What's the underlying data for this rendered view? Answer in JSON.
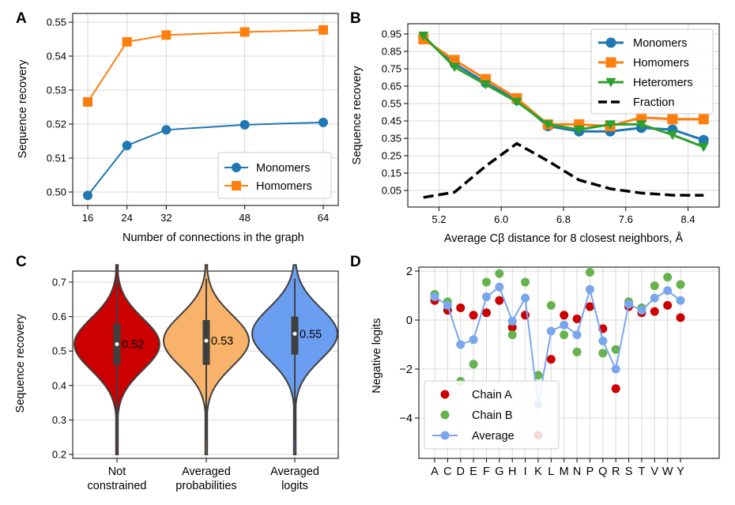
{
  "colors": {
    "blue": "#1f77b4",
    "orange": "#ff7f0e",
    "green": "#2ca02c",
    "black": "#000000",
    "violin_red": "#cc0000",
    "violin_orange": "#f9b26a",
    "violin_blue": "#6a9ef0",
    "chainA": "#cc0000",
    "chainB": "#66b34d",
    "average": "#7aa6ee"
  },
  "panels": {
    "A": {
      "label": "A",
      "xlabel": "Number of connections in the graph",
      "ylabel": "Sequence recovery"
    },
    "B": {
      "label": "B",
      "xlabel": "Average Cβ distance for 8 closest neighbors, Å",
      "ylabel": "Sequence recovery"
    },
    "C": {
      "label": "C",
      "xlabel": "",
      "ylabel": "Sequence recovery"
    },
    "D": {
      "label": "D",
      "xlabel": "",
      "ylabel": "Negative logits"
    }
  },
  "chart_data": [
    {
      "panel": "A",
      "type": "line",
      "x": [
        16,
        24,
        32,
        48,
        64
      ],
      "xticks": [
        "16",
        "24",
        "32",
        "48",
        "64"
      ],
      "yticks": [
        "0.50",
        "0.51",
        "0.52",
        "0.53",
        "0.54",
        "0.55"
      ],
      "ylim": [
        0.498,
        0.55
      ],
      "grid": true,
      "legend_position": "lower-right",
      "series": [
        {
          "name": "Monomers",
          "color": "blue",
          "marker": "circle",
          "values": [
            0.499,
            0.5137,
            0.5183,
            0.5198,
            0.5205
          ]
        },
        {
          "name": "Homomers",
          "color": "orange",
          "marker": "square",
          "values": [
            0.5265,
            0.5442,
            0.5462,
            0.5471,
            0.5477
          ]
        }
      ]
    },
    {
      "panel": "B",
      "type": "line",
      "x": [
        5.0,
        5.4,
        5.8,
        6.2,
        6.6,
        7.0,
        7.4,
        7.8,
        8.2,
        8.6
      ],
      "xticks": [
        "5.2",
        "6.0",
        "6.8",
        "7.6",
        "8.4"
      ],
      "xtick_values": [
        5.2,
        6.0,
        6.8,
        7.6,
        8.4
      ],
      "xlim": [
        4.8,
        8.8
      ],
      "yticks": [
        "0.05",
        "0.15",
        "0.25",
        "0.35",
        "0.45",
        "0.55",
        "0.65",
        "0.75",
        "0.85",
        "0.95"
      ],
      "ylim": [
        -0.03,
        0.98
      ],
      "grid": true,
      "legend_position": "top-right",
      "series": [
        {
          "name": "Monomers",
          "color": "blue",
          "marker": "circle",
          "dash": false,
          "values": [
            0.93,
            0.78,
            0.67,
            0.57,
            0.42,
            0.39,
            0.39,
            0.41,
            0.4,
            0.34
          ]
        },
        {
          "name": "Homomers",
          "color": "orange",
          "marker": "square",
          "dash": false,
          "values": [
            0.92,
            0.8,
            0.69,
            0.58,
            0.43,
            0.43,
            0.42,
            0.47,
            0.46,
            0.46
          ]
        },
        {
          "name": "Heteromers",
          "color": "green",
          "marker": "triangle-down",
          "dash": false,
          "values": [
            0.94,
            0.76,
            0.66,
            0.56,
            0.43,
            0.4,
            0.43,
            0.43,
            0.37,
            0.3
          ]
        },
        {
          "name": "Fraction",
          "color": "black",
          "marker": "none",
          "dash": true,
          "values": [
            0.01,
            0.04,
            0.19,
            0.32,
            0.22,
            0.11,
            0.06,
            0.035,
            0.023,
            0.022
          ]
        }
      ]
    },
    {
      "panel": "C",
      "type": "violin",
      "categories": [
        {
          "line1": "Not",
          "line2": "constrained",
          "median": 0.52,
          "q1": 0.46,
          "q3": 0.58,
          "min": 0.2,
          "max": 0.75,
          "annotation": "0.52",
          "color": "violin_red"
        },
        {
          "line1": "Averaged",
          "line2": "probabilities",
          "median": 0.53,
          "q1": 0.46,
          "q3": 0.59,
          "min": 0.2,
          "max": 0.75,
          "annotation": "0.53",
          "color": "violin_orange"
        },
        {
          "line1": "Averaged",
          "line2": "logits",
          "median": 0.55,
          "q1": 0.49,
          "q3": 0.6,
          "min": 0.2,
          "max": 0.75,
          "annotation": "0.55",
          "color": "violin_blue"
        }
      ],
      "yticks": [
        "0.2",
        "0.3",
        "0.4",
        "0.5",
        "0.6",
        "0.7"
      ],
      "ylim": [
        0.2,
        0.76
      ],
      "grid": true
    },
    {
      "panel": "D",
      "type": "scatter",
      "categories": [
        "A",
        "C",
        "D",
        "E",
        "F",
        "G",
        "H",
        "I",
        "K",
        "L",
        "M",
        "N",
        "P",
        "Q",
        "R",
        "S",
        "T",
        "V",
        "W",
        "Y"
      ],
      "yticks": [
        "−4",
        "−2",
        "0",
        "2"
      ],
      "ytick_values": [
        -4,
        -2,
        0,
        2
      ],
      "ylim": [
        -5.5,
        2.2
      ],
      "grid": true,
      "legend_position": "lower-left",
      "series": [
        {
          "name": "Chain A",
          "color": "chainA",
          "kind": "dots",
          "values": [
            0.8,
            0.4,
            0.5,
            0.2,
            0.3,
            0.8,
            -0.3,
            0.2,
            -4.7,
            -1.6,
            0.2,
            0.05,
            0.55,
            -0.35,
            -2.8,
            0.55,
            0.3,
            0.35,
            0.6,
            0.1
          ]
        },
        {
          "name": "Chain B",
          "color": "chainB",
          "kind": "dots",
          "values": [
            1.05,
            0.75,
            -2.5,
            -1.8,
            1.55,
            1.9,
            -0.6,
            1.55,
            -2.25,
            0.6,
            -0.6,
            -1.3,
            1.95,
            -1.35,
            -1.2,
            0.75,
            0.5,
            1.4,
            1.75,
            1.45
          ]
        },
        {
          "name": "Average",
          "color": "average",
          "kind": "line",
          "values": [
            0.95,
            0.6,
            -1.0,
            -0.8,
            0.95,
            1.35,
            -0.05,
            0.9,
            -3.45,
            -0.45,
            -0.2,
            -0.6,
            1.25,
            -0.85,
            -2.0,
            0.65,
            0.4,
            0.9,
            1.2,
            0.8
          ]
        }
      ]
    }
  ]
}
